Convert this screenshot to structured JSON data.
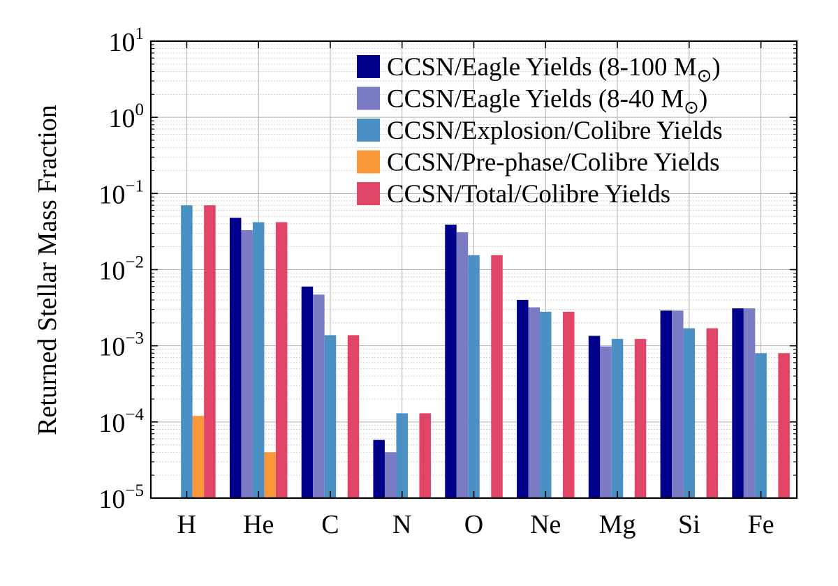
{
  "chart_data": {
    "type": "bar",
    "y_scale": "log",
    "ylim": [
      1e-05,
      10
    ],
    "ylabel": "Returned Stellar Mass Fraction",
    "xlabel": "",
    "grid": true,
    "legend_position": "top-right",
    "categories": [
      "H",
      "He",
      "C",
      "N",
      "O",
      "Ne",
      "Mg",
      "Si",
      "Fe"
    ],
    "yticks": [
      {
        "value": 10,
        "base": "10",
        "exp": "1"
      },
      {
        "value": 1,
        "base": "10",
        "exp": "0"
      },
      {
        "value": 0.1,
        "base": "10",
        "exp": "−1"
      },
      {
        "value": 0.01,
        "base": "10",
        "exp": "−2"
      },
      {
        "value": 0.001,
        "base": "10",
        "exp": "−3"
      },
      {
        "value": 0.0001,
        "base": "10",
        "exp": "−4"
      },
      {
        "value": 1e-05,
        "base": "10",
        "exp": "−5"
      }
    ],
    "series": [
      {
        "name": "CCSN/Eagle Yields (8-100 M",
        "name_sub": "⊙",
        "name_tail": ")",
        "color": "#00008b",
        "values": [
          null,
          0.048,
          0.006,
          5.8e-05,
          0.039,
          0.004,
          0.00135,
          0.0029,
          0.0031
        ]
      },
      {
        "name": "CCSN/Eagle Yields (8-40 M",
        "name_sub": "⊙",
        "name_tail": ")",
        "color": "#7b7bc4",
        "values": [
          null,
          0.033,
          0.0047,
          4e-05,
          0.031,
          0.0032,
          0.00098,
          0.0029,
          0.0031
        ]
      },
      {
        "name": "CCSN/Explosion/Colibre Yields",
        "name_sub": "",
        "name_tail": "",
        "color": "#4a90c4",
        "values": [
          0.07,
          0.042,
          0.00138,
          0.00013,
          0.0155,
          0.0028,
          0.00123,
          0.0017,
          0.0008
        ]
      },
      {
        "name": "CCSN/Pre-phase/Colibre Yields",
        "name_sub": "",
        "name_tail": "",
        "color": "#fa9739",
        "values": [
          0.00012,
          4e-05,
          null,
          null,
          null,
          null,
          null,
          null,
          null
        ]
      },
      {
        "name": "CCSN/Total/Colibre Yields",
        "name_sub": "",
        "name_tail": "",
        "color": "#e04466",
        "values": [
          0.07,
          0.042,
          0.00138,
          0.00013,
          0.0155,
          0.0028,
          0.00123,
          0.0017,
          0.0008
        ]
      }
    ]
  }
}
